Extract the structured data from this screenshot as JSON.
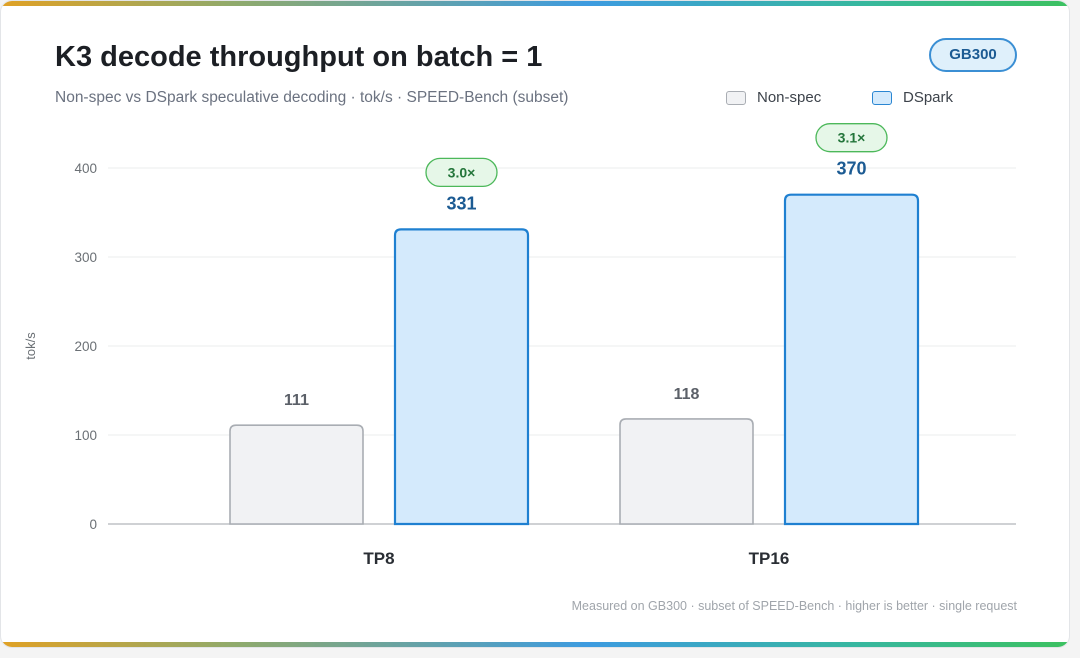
{
  "header": {
    "title": "K3 decode throughput on batch = 1",
    "subtitle": "Non-spec vs DSpark speculative decoding · tok/s · SPEED-Bench (subset)",
    "badge": "GB300"
  },
  "legend": {
    "items": [
      {
        "label": "Non-spec",
        "fill": "#f1f2f4",
        "stroke": "#a9adb3"
      },
      {
        "label": "DSpark",
        "fill": "#d4eafc",
        "stroke": "#2a86d2"
      }
    ]
  },
  "footnote": "Measured on GB300 · subset of SPEED-Bench · higher is better · single request",
  "colors": {
    "nonspec_fill": "#f1f2f4",
    "nonspec_stroke": "#a9adb3",
    "dspark_fill": "#d4eafc",
    "dspark_stroke": "#1f80d1",
    "dspark_label": "#1c5b93",
    "nonspec_label": "#5b6068",
    "speedup_fill": "#e6f7e8",
    "speedup_stroke": "#4cb85a",
    "speedup_text": "#23753a",
    "grid": "#ebecee",
    "axis": "#bfc2c6",
    "tick_text": "#6b7075"
  },
  "chart_data": {
    "type": "bar",
    "categories": [
      "TP8",
      "TP16"
    ],
    "series": [
      {
        "name": "Non-spec",
        "values": [
          111,
          118
        ]
      },
      {
        "name": "DSpark",
        "values": [
          331,
          370
        ]
      }
    ],
    "speedups": [
      "3.0×",
      "3.1×"
    ],
    "ylabel": "tok/s",
    "xlabel": "",
    "ylim": [
      0,
      400
    ],
    "yticks": [
      0,
      100,
      200,
      300,
      400
    ],
    "grid": true,
    "legend_position": "top-right"
  }
}
